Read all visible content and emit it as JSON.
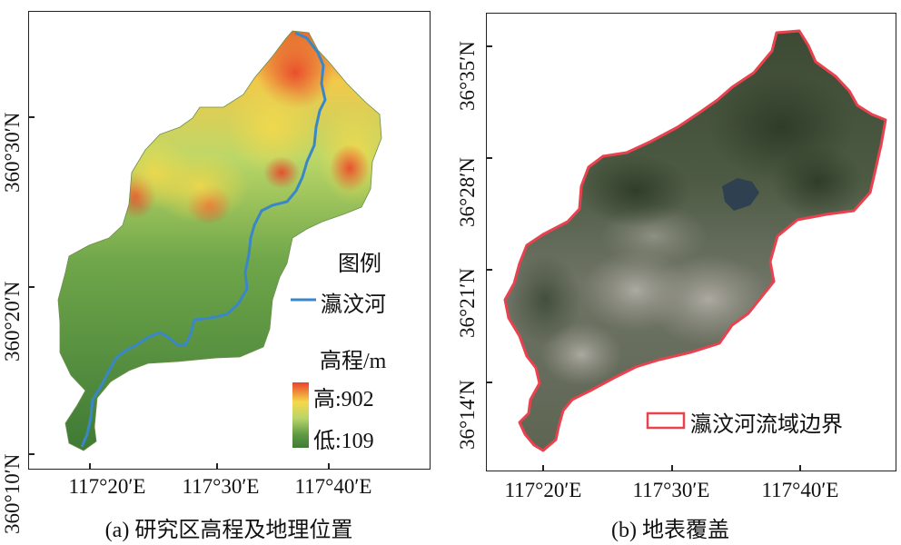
{
  "panel_a": {
    "caption": "(a) 研究区高程及地理位置",
    "x_labels": [
      "117°20′E",
      "117°30′E",
      "117°40′E"
    ],
    "y_labels": [
      "360°10′N",
      "360°20′N",
      "360°30′N"
    ],
    "legend": {
      "title": "图例",
      "river_label": "瀛汶河",
      "river_color": "#3a87c8",
      "elev_title": "高程/m",
      "high_label": "高:902",
      "low_label": "低:109",
      "ramp_colors": [
        "#e8432b",
        "#f5d94b",
        "#b8d46a",
        "#5e9a43",
        "#3f7a35"
      ]
    }
  },
  "panel_b": {
    "caption": "(b) 地表覆盖",
    "x_labels": [
      "117°20′E",
      "117°30′E",
      "117°40′E"
    ],
    "y_labels": [
      "36°14′N",
      "36°21′N",
      "36°28′N",
      "36°35′N"
    ],
    "legend": {
      "boundary_label": "瀛汶河流域边界",
      "boundary_color": "#e8424f"
    }
  }
}
